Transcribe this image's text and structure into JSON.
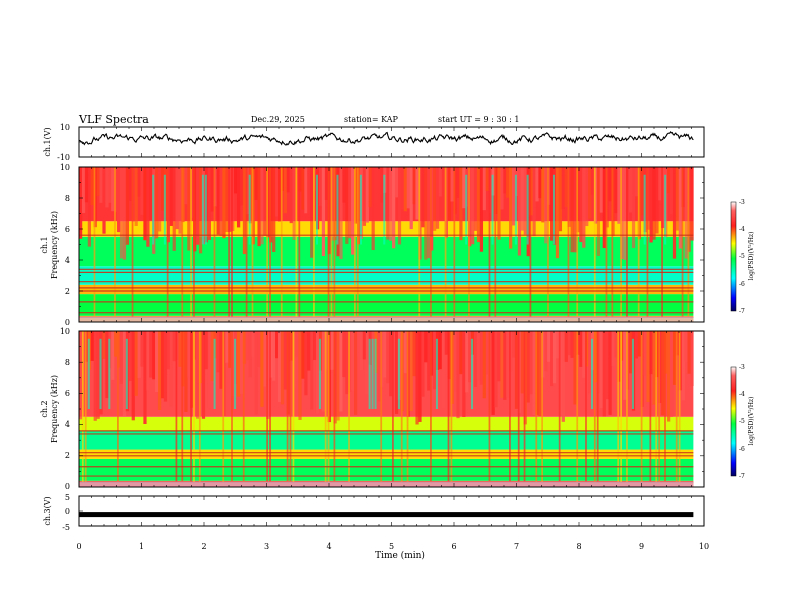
{
  "header": {
    "title": "VLF Spectra",
    "date": "Dec.29, 2025",
    "station": "station= KAP",
    "start": "start  UT  =   9  : 30 : 1"
  },
  "chart_data": [
    {
      "type": "line",
      "panel": "ch1-waveform",
      "ylabel": "ch.1(V)",
      "ylim": [
        -10,
        10
      ],
      "yticks": [
        10,
        -10
      ],
      "xlim": [
        0,
        10
      ],
      "x_end": 9.83,
      "description_values": "continuous noisy waveform centered near +2 V with swings between about -5 and +9 V"
    },
    {
      "type": "heatmap",
      "panel": "ch1-spectrogram",
      "ylabel": "ch.1\nFrequency (kHz)",
      "ylabel_lines": [
        "ch.1",
        "Frequency (kHz)"
      ],
      "ylim": [
        0,
        10
      ],
      "yticks": [
        0,
        2,
        4,
        6,
        8,
        10
      ],
      "xlim": [
        0,
        10
      ],
      "x_end": 9.83,
      "colorbar": {
        "label": "log(PSD)(V²/Hz)",
        "range": [
          -7,
          -3
        ],
        "ticks": [
          -3,
          -4,
          -5,
          -6,
          -7
        ]
      },
      "bands": [
        {
          "f_lo": 0,
          "f_hi": 0.4,
          "level": -4.2
        },
        {
          "f_lo": 0.4,
          "f_hi": 1.8,
          "level": -5.1
        },
        {
          "f_lo": 1.8,
          "f_hi": 2.4,
          "level": -4.3
        },
        {
          "f_lo": 2.4,
          "f_hi": 3.6,
          "level": -5.6
        },
        {
          "f_lo": 3.6,
          "f_hi": 5.5,
          "level": -5.2
        },
        {
          "f_lo": 5.5,
          "f_hi": 6.5,
          "level": -4.4
        },
        {
          "f_lo": 6.5,
          "f_hi": 10,
          "level": -3.7
        }
      ],
      "lines_khz": [
        0.3,
        0.6,
        1.3,
        2.0,
        2.2,
        2.6,
        3.2,
        3.4,
        5.6
      ]
    },
    {
      "type": "heatmap",
      "panel": "ch2-spectrogram",
      "ylabel": "ch.2\nFrequency (kHz)",
      "ylabel_lines": [
        "ch.2",
        "Frequency (kHz)"
      ],
      "ylim": [
        0,
        10
      ],
      "yticks": [
        0,
        2,
        4,
        6,
        8,
        10
      ],
      "xlim": [
        0,
        10
      ],
      "x_end": 9.83,
      "colorbar": {
        "label": "log(PSD)(V²/Hz)",
        "range": [
          -7,
          -3
        ],
        "ticks": [
          -3,
          -4,
          -5,
          -6,
          -7
        ]
      },
      "bands": [
        {
          "f_lo": 0,
          "f_hi": 0.4,
          "level": -4.0
        },
        {
          "f_lo": 0.4,
          "f_hi": 1.8,
          "level": -5.2
        },
        {
          "f_lo": 1.8,
          "f_hi": 2.4,
          "level": -4.4
        },
        {
          "f_lo": 2.4,
          "f_hi": 3.6,
          "level": -5.4
        },
        {
          "f_lo": 3.6,
          "f_hi": 4.5,
          "level": -4.6
        },
        {
          "f_lo": 4.5,
          "f_hi": 10,
          "level": -3.5
        }
      ],
      "lines_khz": [
        0.3,
        0.7,
        1.3,
        2.0,
        2.2,
        3.4,
        3.6
      ]
    },
    {
      "type": "line",
      "panel": "ch3-waveform",
      "ylabel": "ch.3(V)",
      "ylim": [
        -5,
        5
      ],
      "yticks": [
        5,
        0,
        -5
      ],
      "xlim": [
        0,
        10
      ],
      "x_end": 9.83,
      "level_v": -1.2,
      "xlabel": "Time (min)",
      "xticks": [
        0,
        1,
        2,
        3,
        4,
        5,
        6,
        7,
        8,
        9,
        10
      ]
    }
  ],
  "tick_labels": {
    "ch1": {
      "top": "10",
      "bottom": "-10"
    },
    "ch3": {
      "top": "5",
      "mid": "0",
      "bottom": "-5"
    },
    "spec": [
      "0",
      "2",
      "4",
      "6",
      "8",
      "10"
    ],
    "cb": [
      "-3",
      "-4",
      "-5",
      "-6",
      "-7"
    ],
    "time": [
      "0",
      "1",
      "2",
      "3",
      "4",
      "5",
      "6",
      "7",
      "8",
      "9",
      "10"
    ]
  },
  "labels": {
    "ch1_y": "ch.1(V)",
    "ch1spec_y1": "ch.1",
    "ch1spec_y2": "Frequency (kHz)",
    "ch2spec_y1": "ch.2",
    "ch2spec_y2": "Frequency (kHz)",
    "ch3_y": "ch.3(V)",
    "cb1": "log(PSD)(V²/Hz)",
    "cb2": "log(PSD)(V²/Hz)",
    "x": "Time  (min)"
  },
  "colors": {
    "spectrum_scale": [
      "#000080",
      "#0000ff",
      "#00ffff",
      "#00ff40",
      "#ffff00",
      "#ff2020",
      "#ffffff"
    ]
  }
}
